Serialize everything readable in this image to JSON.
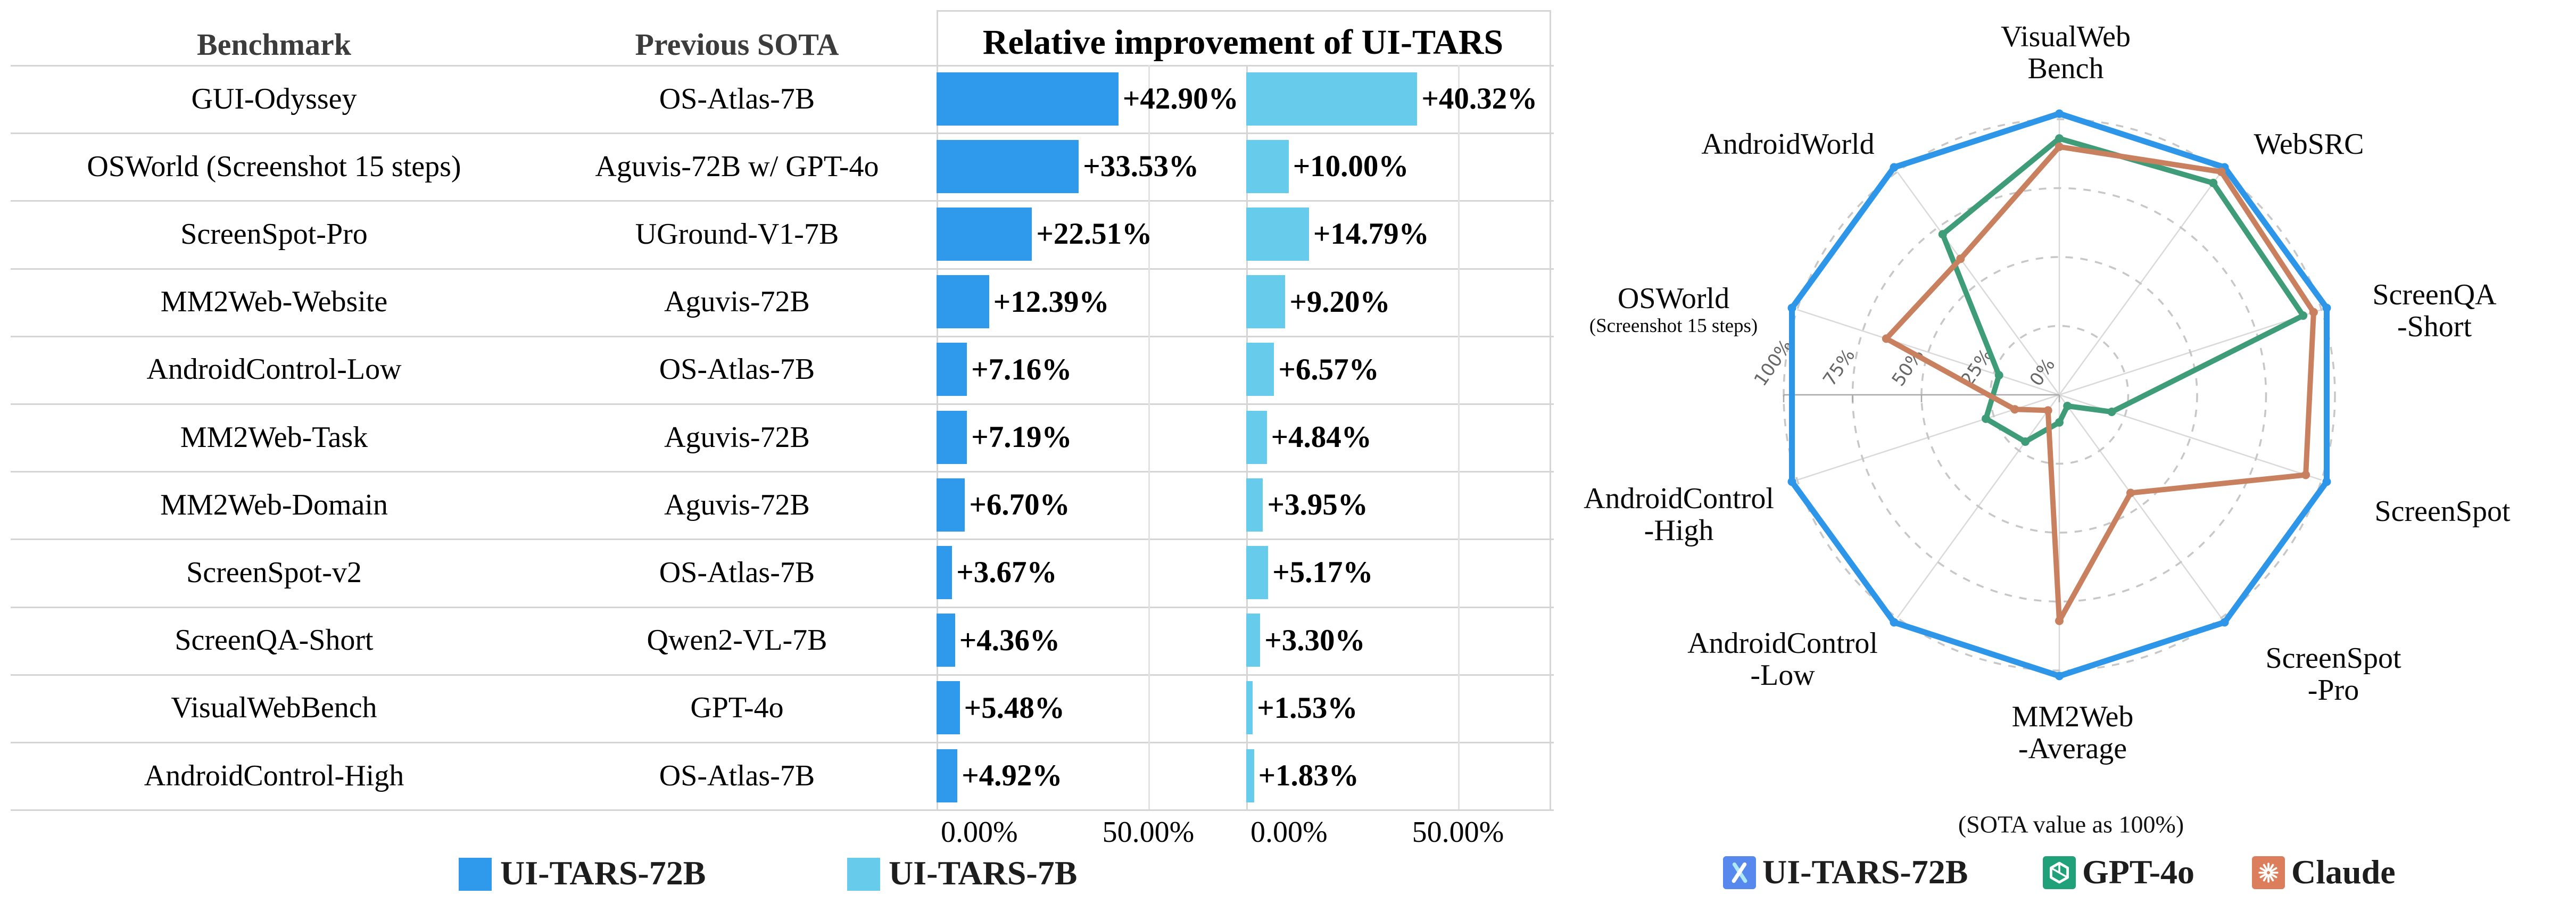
{
  "table": {
    "headers": {
      "benchmark": "Benchmark",
      "previous_sota": "Previous SOTA",
      "improvement": "Relative improvement of UI-TARS"
    },
    "rows": [
      {
        "benchmark": "GUI-Odyssey",
        "previous_sota": "OS-Atlas-7B",
        "label_72b": "+42.90%",
        "label_7b": "+40.32%",
        "value_72b": 42.9,
        "value_7b": 40.32
      },
      {
        "benchmark": "OSWorld (Screenshot 15 steps)",
        "previous_sota": "Aguvis-72B w/ GPT-4o",
        "label_72b": "+33.53%",
        "label_7b": "+10.00%",
        "value_72b": 33.53,
        "value_7b": 10.0
      },
      {
        "benchmark": "ScreenSpot-Pro",
        "previous_sota": "UGround-V1-7B",
        "label_72b": "+22.51%",
        "label_7b": "+14.79%",
        "value_72b": 22.51,
        "value_7b": 14.79
      },
      {
        "benchmark": "MM2Web-Website",
        "previous_sota": "Aguvis-72B",
        "label_72b": "+12.39%",
        "label_7b": "+9.20%",
        "value_72b": 12.39,
        "value_7b": 9.2
      },
      {
        "benchmark": "AndroidControl-Low",
        "previous_sota": "OS-Atlas-7B",
        "label_72b": "+7.16%",
        "label_7b": "+6.57%",
        "value_72b": 7.16,
        "value_7b": 6.57
      },
      {
        "benchmark": "MM2Web-Task",
        "previous_sota": "Aguvis-72B",
        "label_72b": "+7.19%",
        "label_7b": "+4.84%",
        "value_72b": 7.19,
        "value_7b": 4.84
      },
      {
        "benchmark": "MM2Web-Domain",
        "previous_sota": "Aguvis-72B",
        "label_72b": "+6.70%",
        "label_7b": "+3.95%",
        "value_72b": 6.7,
        "value_7b": 3.95
      },
      {
        "benchmark": "ScreenSpot-v2",
        "previous_sota": "OS-Atlas-7B",
        "label_72b": "+3.67%",
        "label_7b": "+5.17%",
        "value_72b": 3.67,
        "value_7b": 5.17
      },
      {
        "benchmark": "ScreenQA-Short",
        "previous_sota": "Qwen2-VL-7B",
        "label_72b": "+4.36%",
        "label_7b": "+3.30%",
        "value_72b": 4.36,
        "value_7b": 3.3
      },
      {
        "benchmark": "VisualWebBench",
        "previous_sota": "GPT-4o",
        "label_72b": "+5.48%",
        "label_7b": "+1.53%",
        "value_72b": 5.48,
        "value_7b": 1.53
      },
      {
        "benchmark": "AndroidControl-High",
        "previous_sota": "OS-Atlas-7B",
        "label_72b": "+4.92%",
        "label_7b": "+1.83%",
        "value_72b": 4.92,
        "value_7b": 1.83
      }
    ],
    "x_ticks": [
      "0.00%",
      "50.00%"
    ],
    "legend": [
      {
        "label": "UI-TARS-72B",
        "color": "#2F9AEC"
      },
      {
        "label": "UI-TARS-7B",
        "color": "#67CCEC"
      }
    ]
  },
  "radar": {
    "caption": "(SOTA value as 100%)",
    "tick_labels": [
      "100%",
      "75%",
      "50%",
      "25%",
      "0%"
    ],
    "axes": [
      {
        "lines": [
          "VisualWeb",
          "Bench"
        ]
      },
      {
        "lines": [
          "WebSRC"
        ]
      },
      {
        "lines": [
          "ScreenQA",
          "-Short"
        ]
      },
      {
        "lines": [
          "ScreenSpot"
        ]
      },
      {
        "lines": [
          "ScreenSpot",
          "-Pro"
        ]
      },
      {
        "lines": [
          "MM2Web",
          "-Average"
        ]
      },
      {
        "lines": [
          "AndroidControl",
          "-Low"
        ]
      },
      {
        "lines": [
          "AndroidControl",
          "-High"
        ]
      },
      {
        "lines": [
          "OSWorld"
        ],
        "sub": "(Screenshot 15 steps)"
      },
      {
        "lines": [
          "AndroidWorld"
        ]
      }
    ],
    "series": [
      {
        "name": "UI-TARS-72B",
        "color": "#2E96E8",
        "values": [
          102,
          102,
          102,
          102,
          102,
          102,
          102,
          102,
          102,
          102
        ]
      },
      {
        "name": "GPT-4o",
        "color": "#3E9C78",
        "values": [
          93,
          95,
          93,
          20,
          5,
          10,
          21,
          28,
          23,
          72
        ]
      },
      {
        "name": "Claude",
        "color": "#C8805F",
        "values": [
          90,
          100,
          97,
          94,
          44,
          82,
          7,
          17,
          66,
          61
        ]
      }
    ],
    "legend": [
      {
        "label": "UI-TARS-72B",
        "color": "#5688EE",
        "glyph": "uitars-lambda"
      },
      {
        "label": "GPT-4o",
        "color": "#21A179",
        "glyph": "openai-flower"
      },
      {
        "label": "Claude",
        "color": "#DC7D5C",
        "glyph": "claude-starburst"
      }
    ]
  },
  "chart_data": [
    {
      "type": "bar",
      "orientation": "horizontal",
      "title": "Relative improvement of UI-TARS",
      "categories": [
        "GUI-Odyssey",
        "OSWorld (Screenshot 15 steps)",
        "ScreenSpot-Pro",
        "MM2Web-Website",
        "AndroidControl-Low",
        "MM2Web-Task",
        "MM2Web-Domain",
        "ScreenSpot-v2",
        "ScreenQA-Short",
        "VisualWebBench",
        "AndroidControl-High"
      ],
      "previous_sota": [
        "OS-Atlas-7B",
        "Aguvis-72B w/ GPT-4o",
        "UGround-V1-7B",
        "Aguvis-72B",
        "OS-Atlas-7B",
        "Aguvis-72B",
        "Aguvis-72B",
        "OS-Atlas-7B",
        "Qwen2-VL-7B",
        "GPT-4o",
        "OS-Atlas-7B"
      ],
      "series": [
        {
          "name": "UI-TARS-72B",
          "values": [
            42.9,
            33.53,
            22.51,
            12.39,
            7.16,
            7.19,
            6.7,
            3.67,
            4.36,
            5.48,
            4.92
          ]
        },
        {
          "name": "UI-TARS-7B",
          "values": [
            40.32,
            10.0,
            14.79,
            9.2,
            6.57,
            4.84,
            3.95,
            5.17,
            3.3,
            1.53,
            1.83
          ]
        }
      ],
      "xlim": [
        0,
        72
      ],
      "x_ticks": [
        0,
        50
      ],
      "x_tick_labels": [
        "0.00%",
        "50.00%"
      ],
      "grid": true,
      "legend_position": "bottom"
    },
    {
      "type": "radar",
      "categories": [
        "VisualWebBench",
        "WebSRC",
        "ScreenQA-Short",
        "ScreenSpot",
        "ScreenSpot-Pro",
        "MM2Web-Average",
        "AndroidControl-Low",
        "AndroidControl-High",
        "OSWorld (Screenshot 15 steps)",
        "AndroidWorld"
      ],
      "series": [
        {
          "name": "UI-TARS-72B",
          "values": [
            102,
            102,
            102,
            102,
            102,
            102,
            102,
            102,
            102,
            102
          ]
        },
        {
          "name": "GPT-4o",
          "values": [
            93,
            95,
            93,
            20,
            5,
            10,
            21,
            28,
            23,
            72
          ]
        },
        {
          "name": "Claude",
          "values": [
            90,
            100,
            97,
            94,
            44,
            82,
            7,
            17,
            66,
            61
          ]
        }
      ],
      "r_ticks": [
        0,
        25,
        50,
        75,
        100
      ],
      "r_tick_labels": [
        "0%",
        "25%",
        "50%",
        "75%",
        "100%"
      ],
      "rlim": [
        0,
        112
      ],
      "grid": "dashed-circles",
      "note": "(SOTA value as 100%)",
      "legend_position": "bottom"
    }
  ]
}
